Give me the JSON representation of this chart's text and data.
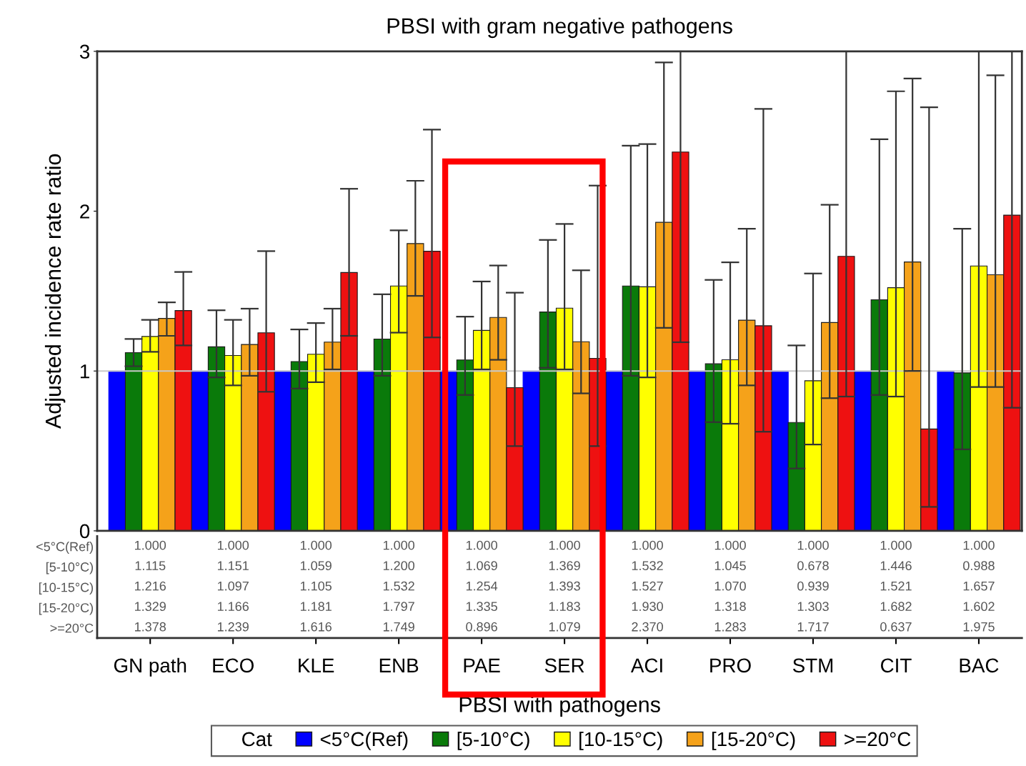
{
  "chart_data": {
    "type": "bar",
    "title": "PBSI with gram negative pathogens",
    "xlabel": "PBSI with pathogens",
    "ylabel": "Adjusted incidence rate ratio",
    "legend_title": "Cat",
    "categories": [
      "GN path",
      "ECO",
      "KLE",
      "ENB",
      "PAE",
      "SER",
      "ACI",
      "PRO",
      "STM",
      "CIT",
      "BAC"
    ],
    "series": [
      {
        "name": "<5°C(Ref)",
        "color": "#0000ff",
        "values": [
          1.0,
          1.0,
          1.0,
          1.0,
          1.0,
          1.0,
          1.0,
          1.0,
          1.0,
          1.0,
          1.0
        ],
        "value_labels": [
          "1.000",
          "1.000",
          "1.000",
          "1.000",
          "1.000",
          "1.000",
          "1.000",
          "1.000",
          "1.000",
          "1.000",
          "1.000"
        ],
        "errors": [
          null,
          null,
          null,
          null,
          null,
          null,
          null,
          null,
          null,
          null,
          null
        ]
      },
      {
        "name": "[5-10°C)",
        "color": "#0a7a0a",
        "values": [
          1.115,
          1.151,
          1.059,
          1.2,
          1.069,
          1.369,
          1.532,
          1.045,
          0.678,
          1.446,
          0.988
        ],
        "value_labels": [
          "1.115",
          "1.151",
          "1.059",
          "1.200",
          "1.069",
          "1.369",
          "1.532",
          "1.045",
          "0.678",
          "1.446",
          "0.988"
        ],
        "errors": [
          [
            1.03,
            1.2
          ],
          [
            0.96,
            1.38
          ],
          [
            0.89,
            1.26
          ],
          [
            0.97,
            1.48
          ],
          [
            0.85,
            1.34
          ],
          [
            1.02,
            1.82
          ],
          [
            0.97,
            2.41
          ],
          [
            0.68,
            1.57
          ],
          [
            0.39,
            1.16
          ],
          [
            0.85,
            2.45
          ],
          [
            0.51,
            1.89
          ]
        ]
      },
      {
        "name": "[10-15°C)",
        "color": "#ffff00",
        "values": [
          1.216,
          1.097,
          1.105,
          1.532,
          1.254,
          1.393,
          1.527,
          1.07,
          0.939,
          1.521,
          1.657
        ],
        "value_labels": [
          "1.216",
          "1.097",
          "1.105",
          "1.532",
          "1.254",
          "1.393",
          "1.527",
          "1.070",
          "0.939",
          "1.521",
          "1.657"
        ],
        "errors": [
          [
            1.12,
            1.32
          ],
          [
            0.91,
            1.32
          ],
          [
            0.93,
            1.3
          ],
          [
            1.24,
            1.88
          ],
          [
            1.01,
            1.56
          ],
          [
            1.01,
            1.92
          ],
          [
            0.96,
            2.42
          ],
          [
            0.67,
            1.68
          ],
          [
            0.54,
            1.61
          ],
          [
            0.84,
            2.75
          ],
          [
            0.9,
            3.0
          ]
        ]
      },
      {
        "name": "[15-20°C)",
        "color": "#f5a21a",
        "values": [
          1.329,
          1.166,
          1.181,
          1.797,
          1.335,
          1.183,
          1.93,
          1.318,
          1.303,
          1.682,
          1.602
        ],
        "value_labels": [
          "1.329",
          "1.166",
          "1.181",
          "1.797",
          "1.335",
          "1.183",
          "1.930",
          "1.318",
          "1.303",
          "1.682",
          "1.602"
        ],
        "errors": [
          [
            1.22,
            1.43
          ],
          [
            0.97,
            1.39
          ],
          [
            1.01,
            1.39
          ],
          [
            1.47,
            2.19
          ],
          [
            1.07,
            1.66
          ],
          [
            0.86,
            1.63
          ],
          [
            1.27,
            2.93
          ],
          [
            0.91,
            1.89
          ],
          [
            0.83,
            2.04
          ],
          [
            1.0,
            2.83
          ],
          [
            0.9,
            2.85
          ]
        ]
      },
      {
        "name": ">=20°C",
        "color": "#ee1111",
        "values": [
          1.378,
          1.239,
          1.616,
          1.749,
          0.896,
          1.079,
          2.37,
          1.283,
          1.717,
          0.637,
          1.975
        ],
        "value_labels": [
          "1.378",
          "1.239",
          "1.616",
          "1.749",
          "0.896",
          "1.079",
          "2.370",
          "1.283",
          "1.717",
          "0.637",
          "1.975"
        ],
        "errors": [
          [
            1.16,
            1.62
          ],
          [
            0.87,
            1.75
          ],
          [
            1.22,
            2.14
          ],
          [
            1.21,
            2.51
          ],
          [
            0.53,
            1.49
          ],
          [
            0.53,
            2.16
          ],
          [
            1.18,
            3.0
          ],
          [
            0.62,
            2.64
          ],
          [
            0.84,
            3.0
          ],
          [
            0.15,
            2.65
          ],
          [
            0.77,
            3.0
          ]
        ]
      }
    ],
    "ylim": [
      0,
      3
    ],
    "yticks": [
      0,
      1,
      2,
      3
    ],
    "grid": false,
    "legend": "bottom",
    "ref_lines": [
      {
        "axis": "y",
        "value": 1,
        "color": "#c8c8c8"
      }
    ]
  }
}
